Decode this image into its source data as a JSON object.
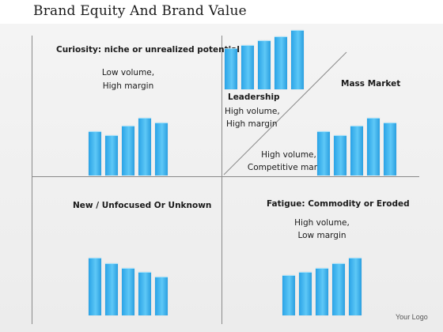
{
  "title": "Brand Equity And Brand Value",
  "quadrants": {
    "top_left": {
      "heading": "Curiosity: niche or unrealized potential",
      "line1": "Low volume,",
      "line2": "High margin",
      "bars": [
        0.55,
        0.5,
        0.62,
        0.72,
        0.66
      ]
    },
    "top_right": {
      "heading_upper": "Leadership",
      "upper_line1": "High volume,",
      "upper_line2": "High margin",
      "heading_lower": "Mass Market",
      "lower_line1": "High volume,",
      "lower_line2": "Competitive margin",
      "bars_upper": [
        0.55,
        0.6,
        0.66,
        0.72,
        0.8
      ],
      "bars_lower": [
        0.55,
        0.5,
        0.62,
        0.72,
        0.66
      ]
    },
    "bottom_left": {
      "heading": "New / Unfocused  Or Unknown",
      "bars": [
        0.8,
        0.72,
        0.66,
        0.6,
        0.53
      ]
    },
    "bottom_right": {
      "heading": "Fatigue:  Commodity  or Eroded",
      "line1": "High volume,",
      "line2": "Low margin",
      "bars": [
        0.55,
        0.6,
        0.66,
        0.72,
        0.8
      ]
    }
  },
  "footer": {
    "logo": "Your Logo"
  },
  "colors": {
    "bar": "#3bb4ef",
    "axis": "#8a8a8a"
  }
}
